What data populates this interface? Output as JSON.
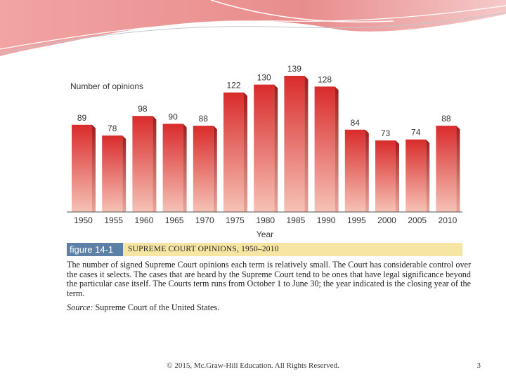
{
  "slide": {
    "footer": "© 2015, Mc.Graw-Hill Education. All Rights Reserved.",
    "page_number": "3"
  },
  "figure": {
    "tag": "figure 14-1",
    "title": "SUPREME COURT OPINIONS, 1950–2010",
    "caption": "The number of signed Supreme Court opinions each term is relatively small. The Court has considerable control over the cases it selects. The cases that are heard by the Supreme Court tend to be ones that have legal significance beyond the particular case itself. The Courts term runs from October 1 to June 30; the year indicated is the closing year of the term.",
    "source_label": "Source:",
    "source_text": "Supreme Court of the United States."
  },
  "chart_data": {
    "type": "bar",
    "ylabel": "Number of opinions",
    "xlabel": "Year",
    "categories": [
      "1950",
      "1955",
      "1960",
      "1965",
      "1970",
      "1975",
      "1980",
      "1985",
      "1990",
      "1995",
      "2000",
      "2005",
      "2010"
    ],
    "values": [
      89,
      78,
      98,
      90,
      88,
      122,
      130,
      139,
      128,
      84,
      73,
      74,
      88
    ],
    "ylim": [
      0,
      139
    ],
    "grid": false,
    "colors": {
      "bar_top": "#d92b2b",
      "bar_bottom": "#f6c2b6",
      "bar_side": "#9e1c1c"
    }
  }
}
